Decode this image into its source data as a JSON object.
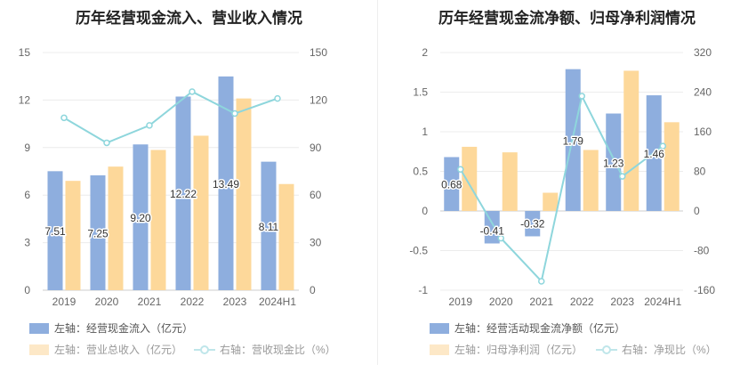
{
  "chart_data": [
    {
      "type": "bar+line",
      "title": "历年经营现金流入、营业收入情况",
      "categories": [
        "2019",
        "2020",
        "2021",
        "2022",
        "2023",
        "2024H1"
      ],
      "left_axis": {
        "ticks": [
          "0",
          "3",
          "6",
          "9",
          "12",
          "15"
        ],
        "ylim": [
          0,
          15
        ]
      },
      "right_axis": {
        "ticks": [
          "0",
          "30",
          "60",
          "90",
          "120",
          "150"
        ],
        "ylim": [
          0,
          150
        ]
      },
      "series": [
        {
          "name": "左轴：经营现金流入（亿元）",
          "axis": "left",
          "kind": "bar",
          "color": "#8eaede",
          "values": [
            7.51,
            7.25,
            9.2,
            12.22,
            13.49,
            8.11
          ],
          "labels": [
            "7.51",
            "7.25",
            "9.20",
            "12.22",
            "13.49",
            "8.11"
          ]
        },
        {
          "name": "左轴：营业总收入（亿元）",
          "axis": "left",
          "kind": "bar",
          "color": "#fdd89a",
          "values": [
            6.9,
            7.8,
            8.85,
            9.75,
            12.1,
            6.7
          ]
        },
        {
          "name": "右轴：营收现金比（%）",
          "axis": "right",
          "kind": "line",
          "color": "#8ed6dc",
          "values": [
            108.8,
            93,
            104,
            125.3,
            111.5,
            121
          ]
        }
      ],
      "grid": true,
      "legend_position": "bottom"
    },
    {
      "type": "bar+line",
      "title": "历年经营现金流净额、归母净利润情况",
      "categories": [
        "2019",
        "2020",
        "2021",
        "2022",
        "2023",
        "2024H1"
      ],
      "left_axis": {
        "ticks": [
          "-1",
          "-0.5",
          "0",
          "0.5",
          "1",
          "1.5",
          "2"
        ],
        "ylim": [
          -1,
          2
        ]
      },
      "right_axis": {
        "ticks": [
          "-160",
          "-80",
          "0",
          "80",
          "160",
          "240",
          "320"
        ],
        "ylim": [
          -160,
          320
        ]
      },
      "series": [
        {
          "name": "左轴：经营活动现金流净额（亿元）",
          "axis": "left",
          "kind": "bar",
          "color": "#8eaede",
          "values": [
            0.68,
            -0.41,
            -0.32,
            1.79,
            1.23,
            1.46
          ],
          "labels": [
            "0.68",
            "-0.41",
            "-0.32",
            "1.79",
            "1.23",
            "1.46"
          ]
        },
        {
          "name": "左轴：归母净利润（亿元）",
          "axis": "left",
          "kind": "bar",
          "color": "#fdd89a",
          "values": [
            0.81,
            0.74,
            0.23,
            0.77,
            1.77,
            1.12
          ]
        },
        {
          "name": "右轴：净现比（%）",
          "axis": "right",
          "kind": "line",
          "color": "#8ed6dc",
          "values": [
            84,
            -55,
            -142,
            232,
            70,
            131
          ]
        }
      ],
      "grid": true,
      "legend_position": "bottom"
    }
  ]
}
